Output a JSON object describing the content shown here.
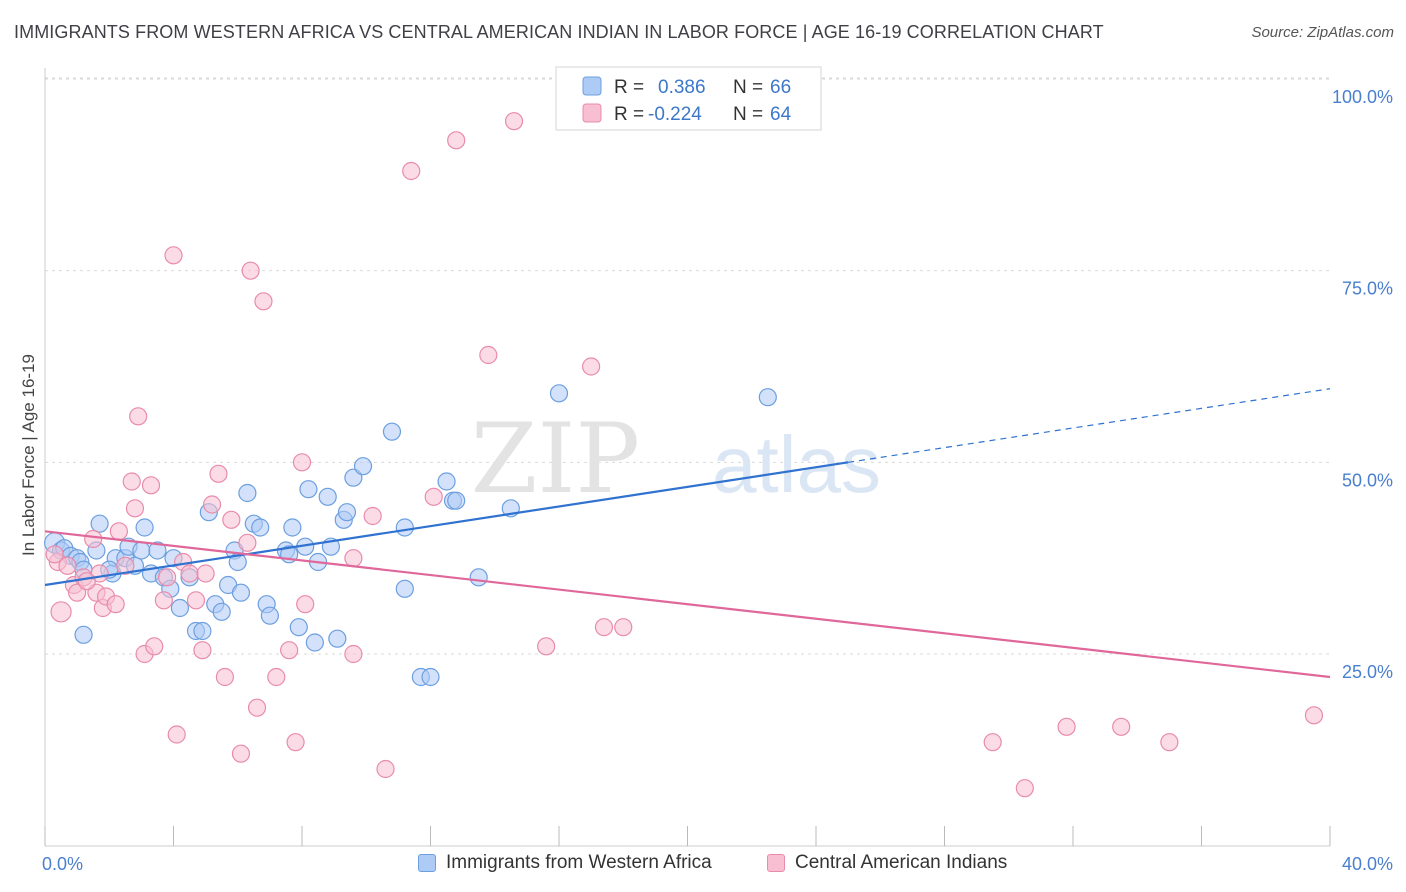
{
  "header": {
    "title": "IMMIGRANTS FROM WESTERN AFRICA VS CENTRAL AMERICAN INDIAN IN LABOR FORCE | AGE 16-19 CORRELATION CHART",
    "source": "Source: ZipAtlas.com"
  },
  "watermark": {
    "zip": "ZIP",
    "atlas": "atlas"
  },
  "legend_top": [
    {
      "r_label": "R =",
      "r_value": "0.386",
      "n_label": "N =",
      "n_value": "66"
    },
    {
      "r_label": "R =",
      "r_value": "-0.224",
      "n_label": "N =",
      "n_value": "64"
    }
  ],
  "colors": {
    "blue_fill": "#aecbf5",
    "blue_stroke": "#6c9fe0",
    "blue_line": "#2f72d0",
    "pink_fill": "#f8bfd2",
    "pink_stroke": "#e98bab",
    "pink_line": "#e0679a",
    "grid": "#d9d9d9",
    "axis_text": "#4a7fcf",
    "watermark": "#e0e0e0"
  },
  "chart_data": {
    "type": "scatter",
    "title": "IMMIGRANTS FROM WESTERN AFRICA VS CENTRAL AMERICAN INDIAN IN LABOR FORCE | AGE 16-19 CORRELATION CHART",
    "ylabel": "In Labor Force | Age 16-19",
    "xlabel": "",
    "xlim": [
      0,
      40
    ],
    "ylim": [
      0,
      102
    ],
    "x_tick_labels": [
      "0.0%",
      "40.0%"
    ],
    "y_ticks": [
      25,
      50,
      75,
      100
    ],
    "y_tick_labels": [
      "25.0%",
      "50.0%",
      "75.0%",
      "100.0%"
    ],
    "grid": true,
    "legend_position": "top-center",
    "series": [
      {
        "name": "Immigrants from Western Africa",
        "r": 0.386,
        "n": 66,
        "trend": {
          "x0": 0,
          "y0": 34.0,
          "x1": 25,
          "y1": 50.0,
          "dashed_to_x": 40,
          "dashed_to_y": 59.6
        },
        "points": [
          [
            0.3,
            39.5
          ],
          [
            0.5,
            38.5
          ],
          [
            0.6,
            38.8
          ],
          [
            0.8,
            37.8
          ],
          [
            1.0,
            37.5
          ],
          [
            1.1,
            37.0
          ],
          [
            1.2,
            36.0
          ],
          [
            1.2,
            27.5
          ],
          [
            1.6,
            38.5
          ],
          [
            1.7,
            42.0
          ],
          [
            2.1,
            35.5
          ],
          [
            2.2,
            37.5
          ],
          [
            2.5,
            37.5
          ],
          [
            2.6,
            39.0
          ],
          [
            2.8,
            36.5
          ],
          [
            3.0,
            38.5
          ],
          [
            3.1,
            41.5
          ],
          [
            3.3,
            35.5
          ],
          [
            3.5,
            38.5
          ],
          [
            3.7,
            35.0
          ],
          [
            3.9,
            33.5
          ],
          [
            4.0,
            37.5
          ],
          [
            4.2,
            31.0
          ],
          [
            4.5,
            35.0
          ],
          [
            4.7,
            28.0
          ],
          [
            4.9,
            28.0
          ],
          [
            5.1,
            43.5
          ],
          [
            5.3,
            31.5
          ],
          [
            5.5,
            30.5
          ],
          [
            5.7,
            34.0
          ],
          [
            5.9,
            38.5
          ],
          [
            6.1,
            33.0
          ],
          [
            6.3,
            46.0
          ],
          [
            6.5,
            42.0
          ],
          [
            6.7,
            41.5
          ],
          [
            6.9,
            31.5
          ],
          [
            7.0,
            30.0
          ],
          [
            7.5,
            38.5
          ],
          [
            7.6,
            38.0
          ],
          [
            7.7,
            41.5
          ],
          [
            7.9,
            28.5
          ],
          [
            8.1,
            39.0
          ],
          [
            8.2,
            46.5
          ],
          [
            8.4,
            26.5
          ],
          [
            8.5,
            37.0
          ],
          [
            8.8,
            45.5
          ],
          [
            8.9,
            39.0
          ],
          [
            9.1,
            27.0
          ],
          [
            9.3,
            42.5
          ],
          [
            9.4,
            43.5
          ],
          [
            9.6,
            48.0
          ],
          [
            9.9,
            49.5
          ],
          [
            10.8,
            54.0
          ],
          [
            11.2,
            33.5
          ],
          [
            11.2,
            41.5
          ],
          [
            11.7,
            22.0
          ],
          [
            12.0,
            22.0
          ],
          [
            12.5,
            47.5
          ],
          [
            12.7,
            45.0
          ],
          [
            12.8,
            45.0
          ],
          [
            13.5,
            35.0
          ],
          [
            14.5,
            44.0
          ],
          [
            16.0,
            59.0
          ],
          [
            22.5,
            58.5
          ],
          [
            6.0,
            37.0
          ],
          [
            2.0,
            36.0
          ]
        ]
      },
      {
        "name": "Central American Indians",
        "r": -0.224,
        "n": 64,
        "trend": {
          "x0": 0,
          "y0": 41.0,
          "x1": 40,
          "y1": 22.0
        },
        "points": [
          [
            0.4,
            37.0
          ],
          [
            0.5,
            30.5
          ],
          [
            0.7,
            36.5
          ],
          [
            0.9,
            34.0
          ],
          [
            1.0,
            33.0
          ],
          [
            1.2,
            35.0
          ],
          [
            1.5,
            40.0
          ],
          [
            1.6,
            33.0
          ],
          [
            1.7,
            35.5
          ],
          [
            1.8,
            31.0
          ],
          [
            1.9,
            32.5
          ],
          [
            2.2,
            31.5
          ],
          [
            2.3,
            41.0
          ],
          [
            2.5,
            36.5
          ],
          [
            2.7,
            47.5
          ],
          [
            2.8,
            44.0
          ],
          [
            2.9,
            56.0
          ],
          [
            3.1,
            25.0
          ],
          [
            3.3,
            47.0
          ],
          [
            3.4,
            26.0
          ],
          [
            3.7,
            32.0
          ],
          [
            3.8,
            35.0
          ],
          [
            4.0,
            77.0
          ],
          [
            4.1,
            14.5
          ],
          [
            4.3,
            37.0
          ],
          [
            4.5,
            35.5
          ],
          [
            4.7,
            32.0
          ],
          [
            4.9,
            25.5
          ],
          [
            5.0,
            35.5
          ],
          [
            5.2,
            44.5
          ],
          [
            5.4,
            48.5
          ],
          [
            5.6,
            22.0
          ],
          [
            5.8,
            42.5
          ],
          [
            6.1,
            12.0
          ],
          [
            6.3,
            39.5
          ],
          [
            6.4,
            75.0
          ],
          [
            6.6,
            18.0
          ],
          [
            6.8,
            71.0
          ],
          [
            7.2,
            22.0
          ],
          [
            7.6,
            25.5
          ],
          [
            7.8,
            13.5
          ],
          [
            8.0,
            50.0
          ],
          [
            8.1,
            31.5
          ],
          [
            9.6,
            37.5
          ],
          [
            9.6,
            25.0
          ],
          [
            10.2,
            43.0
          ],
          [
            10.6,
            10.0
          ],
          [
            11.4,
            88.0
          ],
          [
            12.1,
            45.5
          ],
          [
            12.8,
            92.0
          ],
          [
            13.8,
            64.0
          ],
          [
            14.6,
            94.5
          ],
          [
            15.6,
            26.0
          ],
          [
            17.0,
            62.5
          ],
          [
            17.4,
            28.5
          ],
          [
            18.0,
            28.5
          ],
          [
            29.5,
            13.5
          ],
          [
            30.5,
            7.5
          ],
          [
            31.8,
            15.5
          ],
          [
            33.5,
            15.5
          ],
          [
            35.0,
            13.5
          ],
          [
            39.5,
            17.0
          ],
          [
            0.3,
            38.0
          ],
          [
            1.3,
            34.5
          ]
        ]
      }
    ]
  },
  "legend_bottom": [
    {
      "label": "Immigrants from Western Africa"
    },
    {
      "label": "Central American Indians"
    }
  ]
}
